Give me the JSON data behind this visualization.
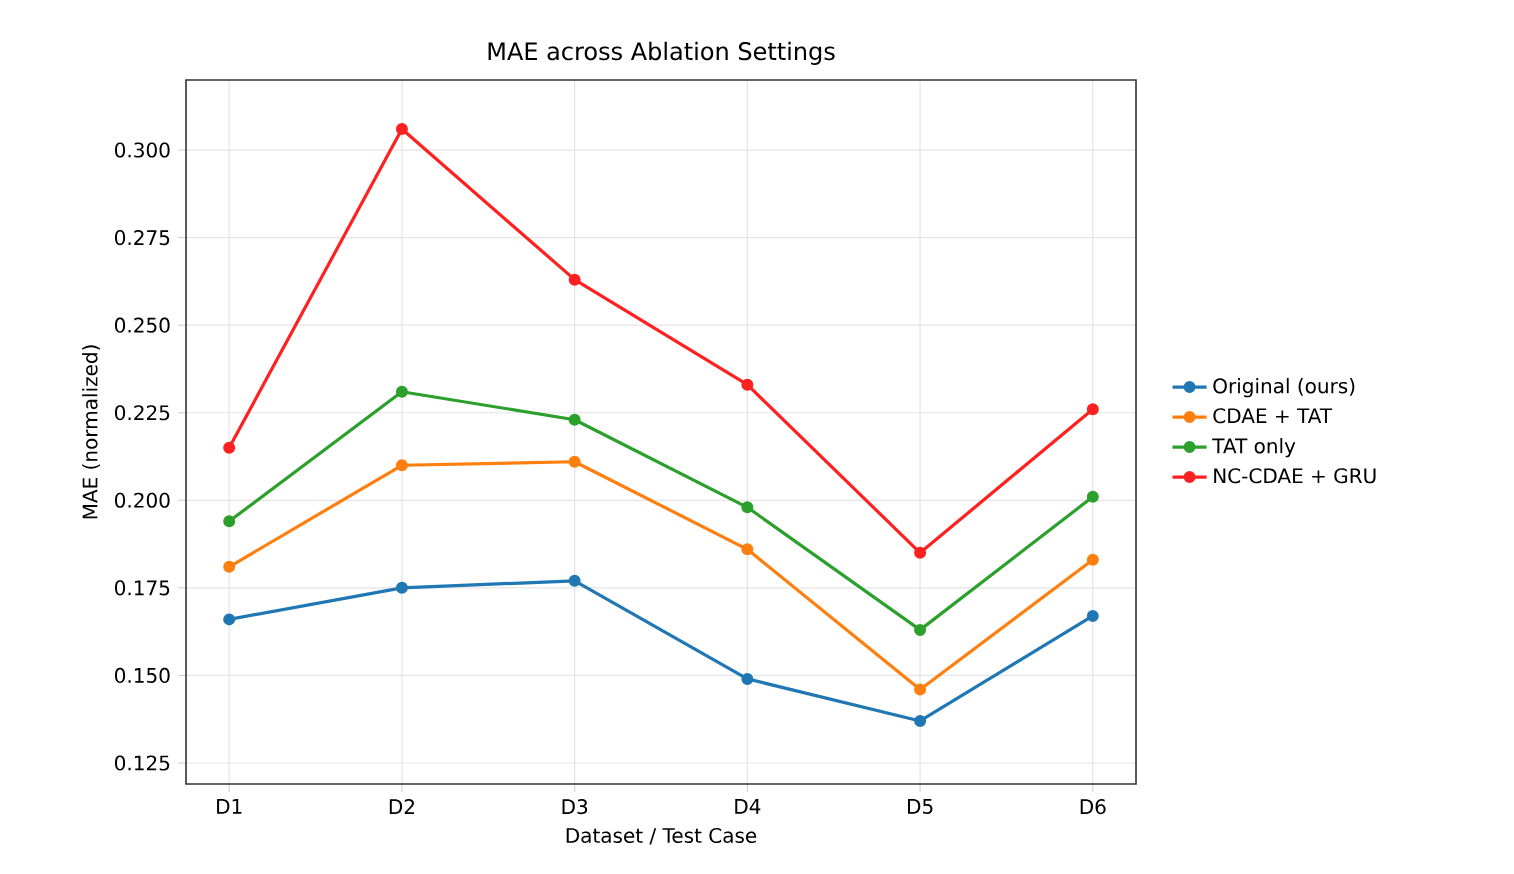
{
  "chart_data": {
    "type": "line",
    "title": "MAE across Ablation Settings",
    "xlabel": "Dataset / Test Case",
    "ylabel": "MAE (normalized)",
    "categories": [
      "D1",
      "D2",
      "D3",
      "D4",
      "D5",
      "D6"
    ],
    "series": [
      {
        "name": "Original (ours)",
        "color": "#1f77b4",
        "values": [
          0.166,
          0.175,
          0.177,
          0.149,
          0.137,
          0.167
        ]
      },
      {
        "name": "CDAE + TAT",
        "color": "#ff7f0e",
        "values": [
          0.181,
          0.21,
          0.211,
          0.186,
          0.146,
          0.183
        ]
      },
      {
        "name": "TAT only",
        "color": "#2ca02c",
        "values": [
          0.194,
          0.231,
          0.223,
          0.198,
          0.163,
          0.201
        ]
      },
      {
        "name": "NC-CDAE + GRU",
        "color": "#ff2020",
        "values": [
          0.215,
          0.306,
          0.263,
          0.233,
          0.185,
          0.226
        ]
      }
    ],
    "ylim": [
      0.119,
      0.32
    ],
    "yticks": [
      {
        "value": 0.125,
        "label": "0.125"
      },
      {
        "value": 0.15,
        "label": "0.150"
      },
      {
        "value": 0.175,
        "label": "0.175"
      },
      {
        "value": 0.2,
        "label": "0.200"
      },
      {
        "value": 0.225,
        "label": "0.225"
      },
      {
        "value": 0.25,
        "label": "0.250"
      },
      {
        "value": 0.275,
        "label": "0.275"
      },
      {
        "value": 0.3,
        "label": "0.300"
      }
    ],
    "grid": true,
    "legend": "right",
    "marker": "circle",
    "line_style": "solid"
  }
}
